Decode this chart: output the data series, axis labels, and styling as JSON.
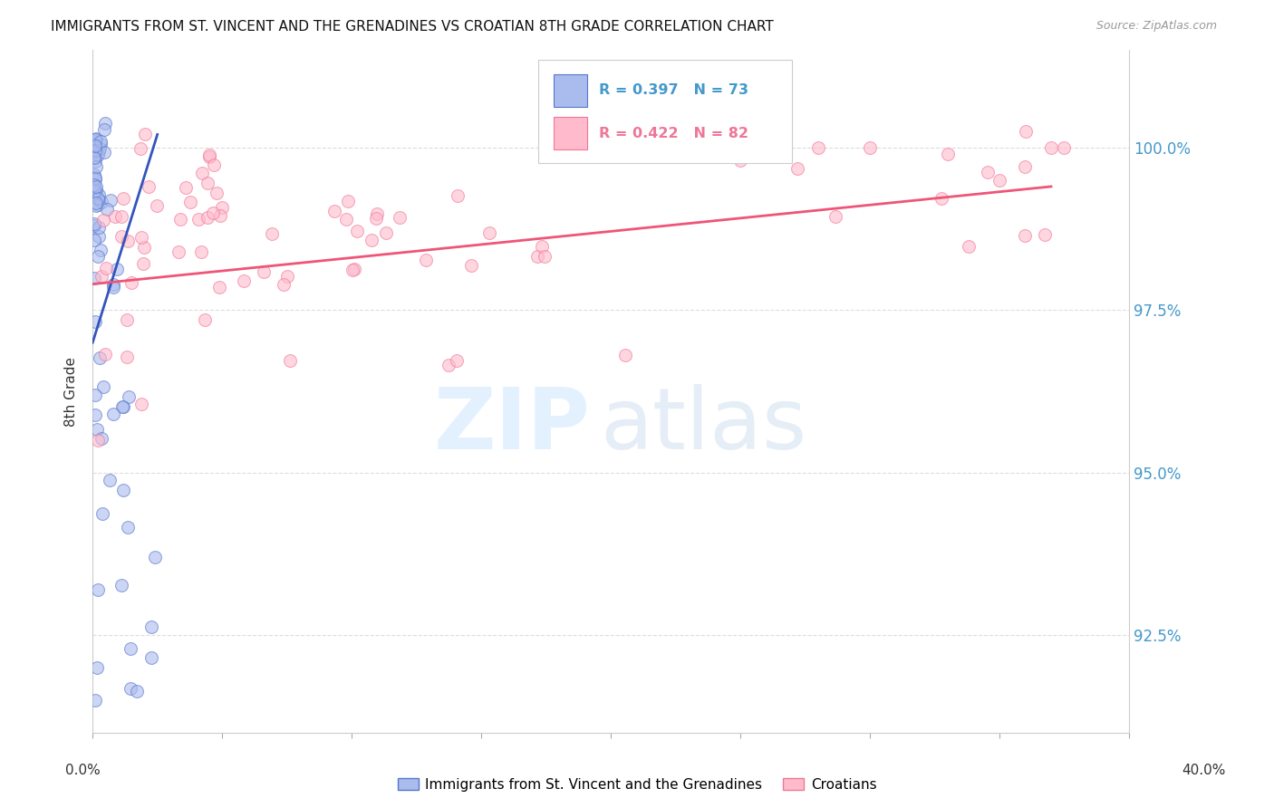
{
  "title": "IMMIGRANTS FROM ST. VINCENT AND THE GRENADINES VS CROATIAN 8TH GRADE CORRELATION CHART",
  "source": "Source: ZipAtlas.com",
  "ylabel": "8th Grade",
  "x_range": [
    0.0,
    40.0
  ],
  "y_range": [
    91.0,
    101.5
  ],
  "y_ticks": [
    92.5,
    95.0,
    97.5,
    100.0
  ],
  "y_tick_labels": [
    "92.5%",
    "95.0%",
    "97.5%",
    "100.0%"
  ],
  "blue_R": 0.397,
  "blue_N": 73,
  "pink_R": 0.422,
  "pink_N": 82,
  "blue_color": "#AABBEE",
  "pink_color": "#FFBBCC",
  "blue_edge_color": "#5577CC",
  "pink_edge_color": "#EE7799",
  "blue_line_color": "#3355BB",
  "pink_line_color": "#EE5577",
  "legend_blue_label": "Immigrants from St. Vincent and the Grenadines",
  "legend_pink_label": "Croatians",
  "right_label_color": "#4499CC",
  "watermark_zip_color": "#DDEEFF",
  "watermark_atlas_color": "#CCDDEE"
}
